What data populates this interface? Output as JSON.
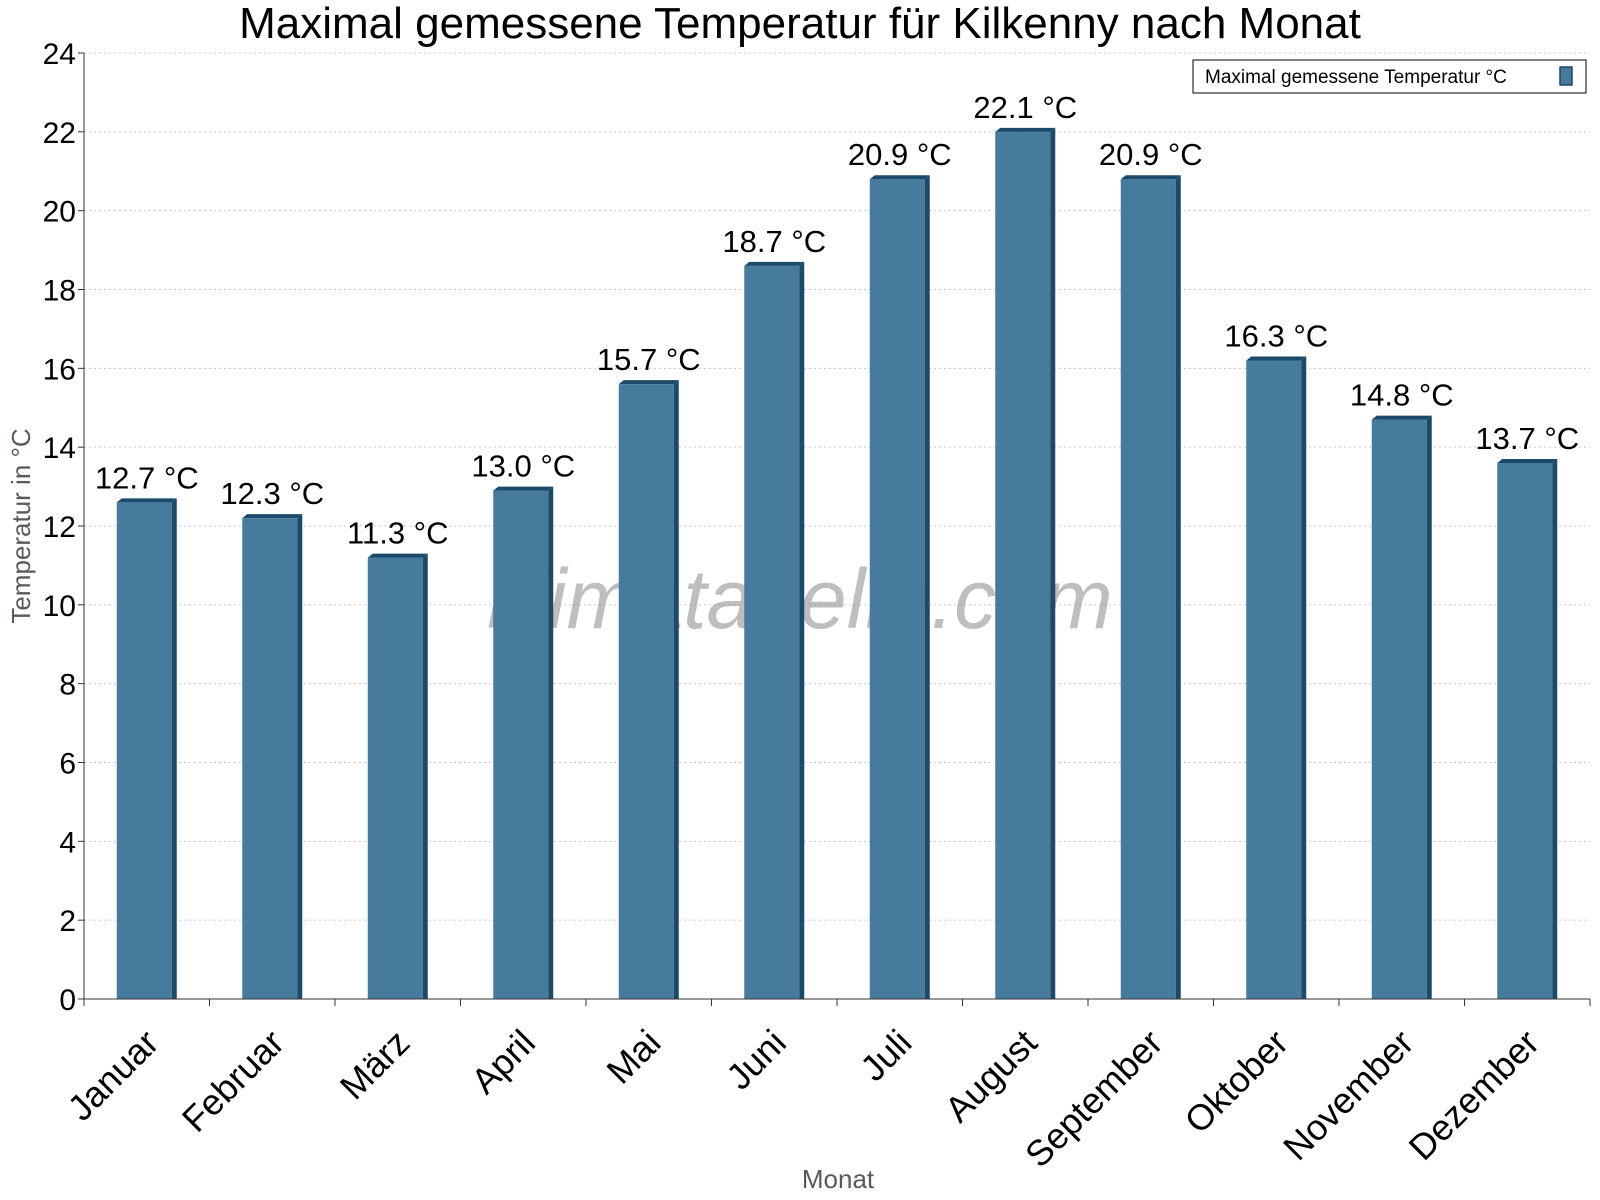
{
  "chart_data": {
    "type": "bar",
    "title": "Maximal gemessene Temperatur für Kilkenny nach Monat",
    "xlabel": "Monat",
    "ylabel": "Temperatur in °C",
    "categories": [
      "Januar",
      "Februar",
      "März",
      "April",
      "Mai",
      "Juni",
      "Juli",
      "August",
      "September",
      "Oktober",
      "November",
      "Dezember"
    ],
    "series": [
      {
        "name": "Maximal gemessene Temperatur °C",
        "values": [
          12.7,
          12.3,
          11.3,
          13.0,
          15.7,
          18.7,
          20.9,
          22.1,
          20.9,
          16.3,
          14.8,
          13.7
        ],
        "labels": [
          "12.7 °C",
          "12.3 °C",
          "11.3 °C",
          "13.0 °C",
          "15.7 °C",
          "18.7 °C",
          "20.9 °C",
          "22.1 °C",
          "20.9 °C",
          "16.3 °C",
          "14.8 °C",
          "13.7 °C"
        ]
      }
    ],
    "ylim": [
      0,
      24
    ],
    "yticks": [
      0,
      2,
      4,
      6,
      8,
      10,
      12,
      14,
      16,
      18,
      20,
      22,
      24
    ],
    "grid": true,
    "legend_position": "top-right",
    "colors": {
      "bar": "#477b9e",
      "bar_edge": "#1c4a6a",
      "grid": "#c8c8c8",
      "axis": "#333333"
    },
    "watermark": "klimatabelle.com"
  }
}
